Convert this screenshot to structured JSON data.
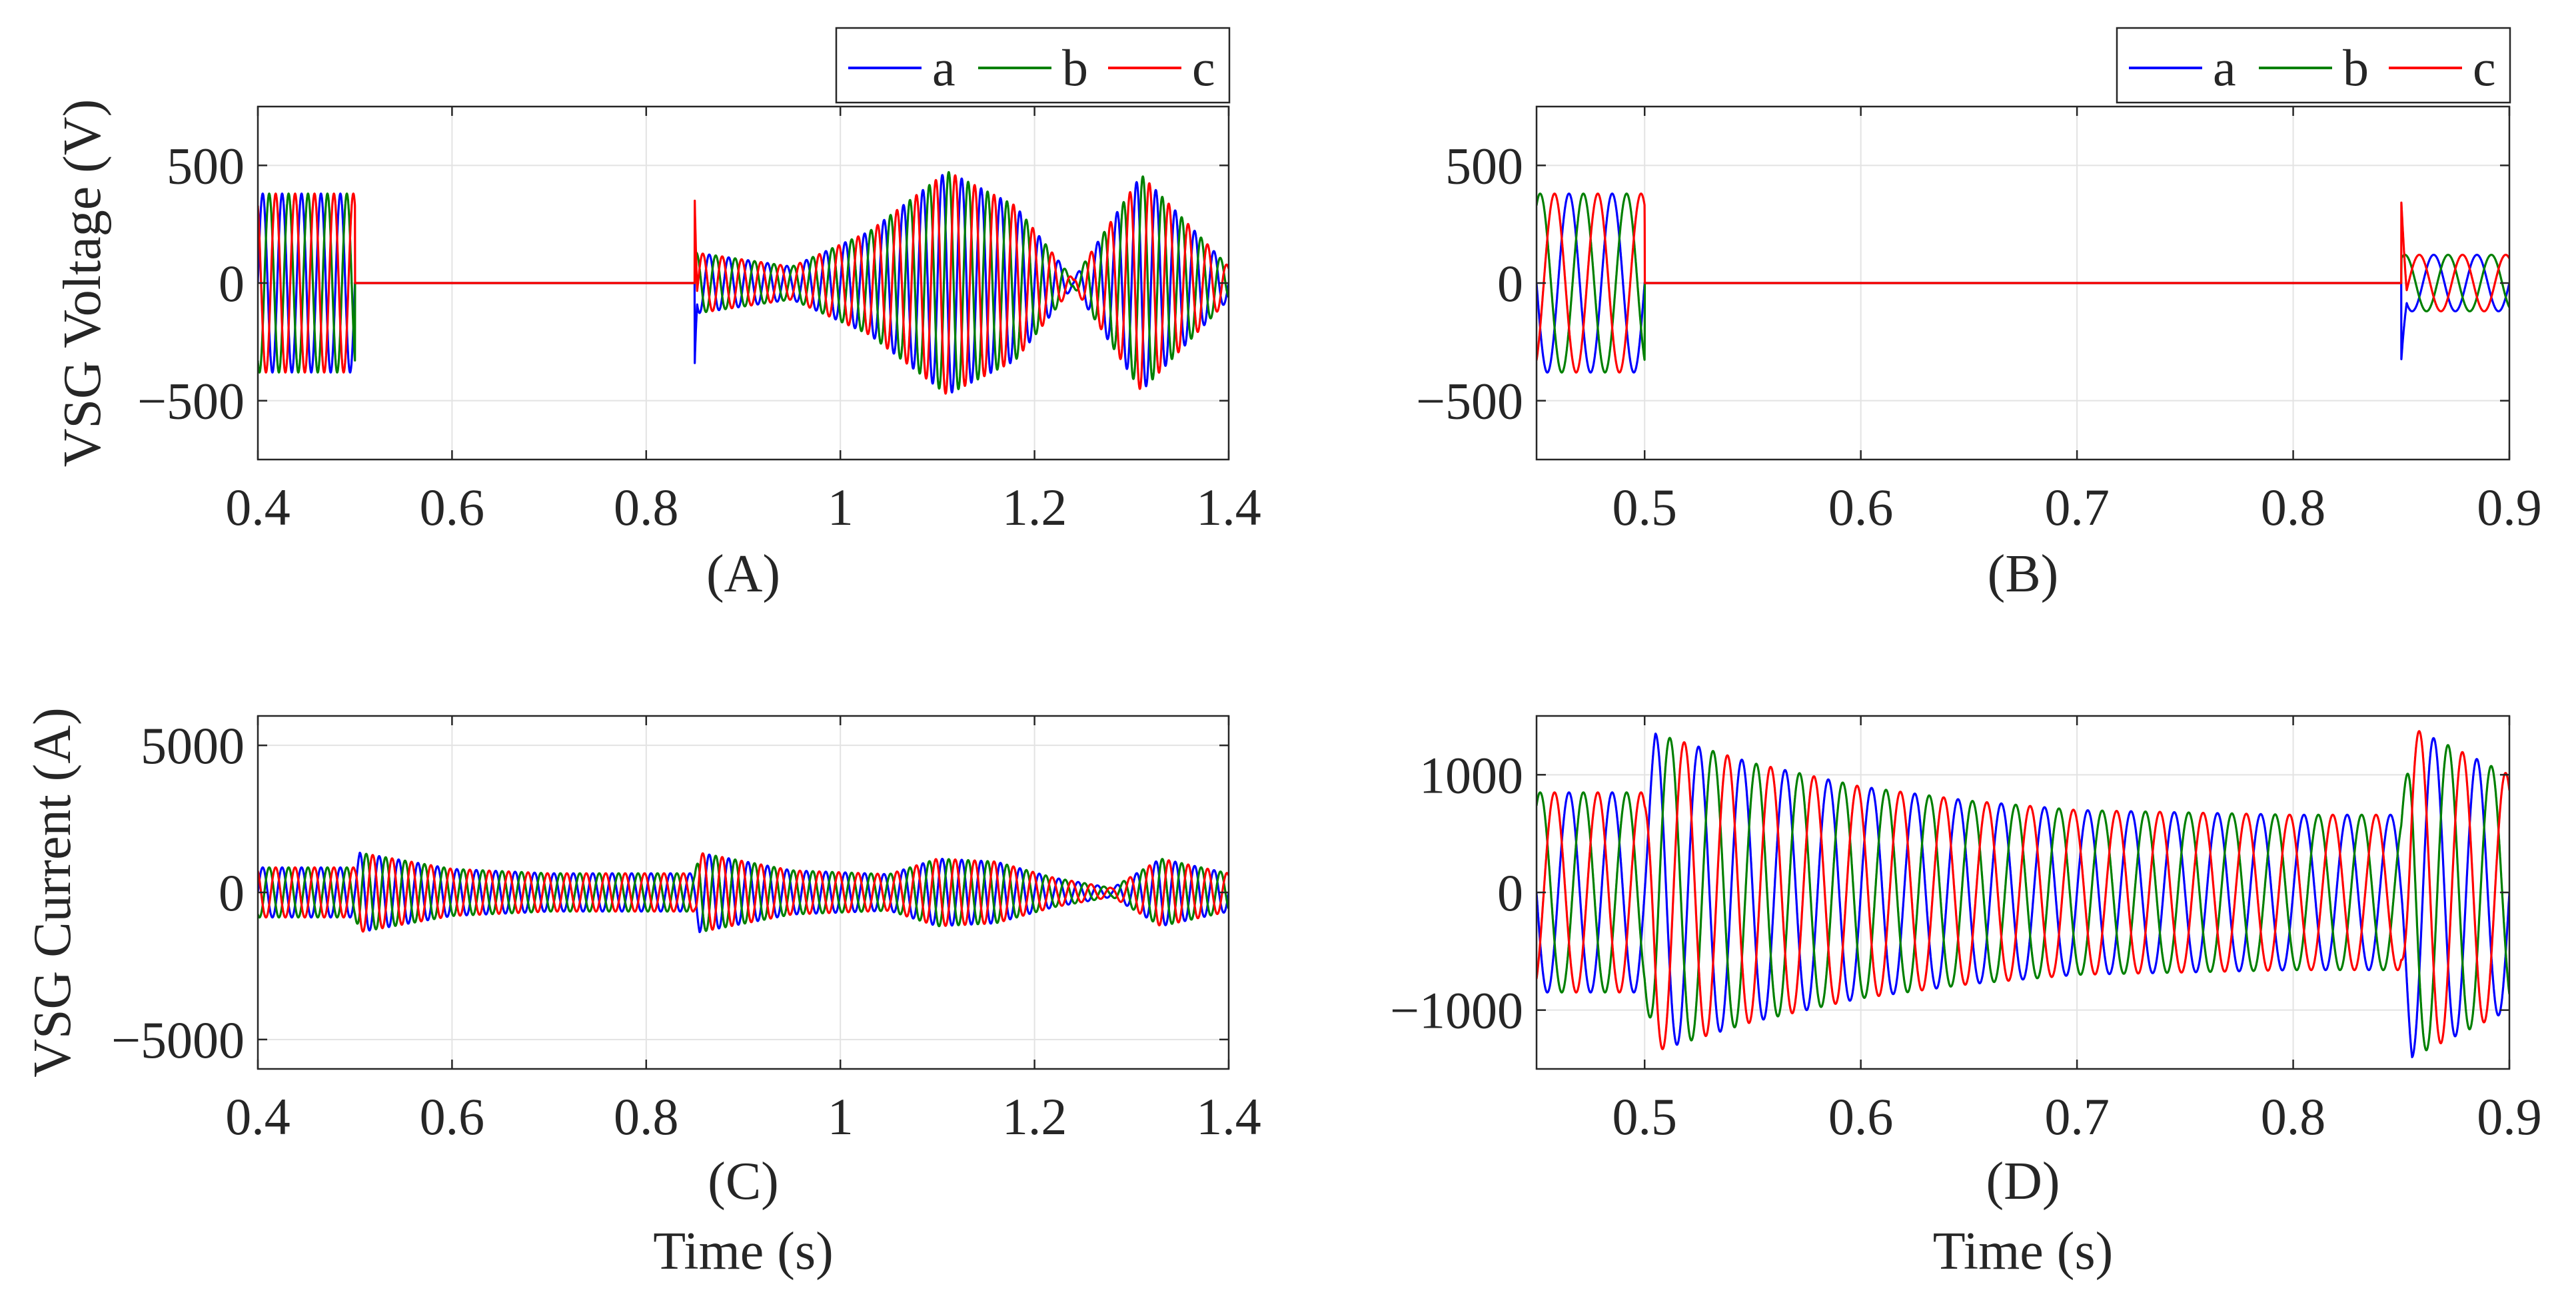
{
  "figure": {
    "x_axis_label": "Time (s)",
    "y_axis_labels": {
      "voltage": "VSG Voltage (V)",
      "current": "VSG Current (A)"
    }
  },
  "legend_labels": [
    "a",
    "b",
    "c"
  ],
  "colors": {
    "a": "#0000ff",
    "b": "#008000",
    "c": "#ff0000",
    "grid": "#e3e3e3",
    "axis": "#262626"
  },
  "chart_data": [
    {
      "id": "A",
      "caption": "(A)",
      "type": "line",
      "ylabel": "VSG Voltage (V)",
      "xlabel": "",
      "xlim": [
        0.4,
        1.4
      ],
      "ylim": [
        -750,
        750
      ],
      "xticks": [
        0.4,
        0.6,
        0.8,
        1,
        1.2,
        1.4
      ],
      "xtick_labels": [
        "0.4",
        "0.6",
        "0.8",
        "1",
        "1.2",
        "1.4"
      ],
      "yticks": [
        -500,
        0,
        500
      ],
      "ytick_labels": [
        "−500",
        "0",
        "500"
      ],
      "grid": true,
      "legend": "top-right, outside",
      "series": [
        {
          "name": "a",
          "phase_deg": 0,
          "frequency_hz": 50
        },
        {
          "name": "b",
          "phase_deg": -120,
          "frequency_hz": 50
        },
        {
          "name": "c",
          "phase_deg": 120,
          "frequency_hz": 50
        }
      ],
      "amplitude_envelope": [
        [
          0.4,
          380
        ],
        [
          0.5,
          380
        ],
        [
          0.5001,
          0
        ],
        [
          0.85,
          0
        ],
        [
          0.8501,
          130
        ],
        [
          0.95,
          70
        ],
        [
          1.03,
          220
        ],
        [
          1.11,
          475
        ],
        [
          1.18,
          330
        ],
        [
          1.24,
          15
        ],
        [
          1.31,
          460
        ],
        [
          1.4,
          70
        ]
      ],
      "transients": [
        {
          "t": 0.85,
          "max": 350,
          "min": -340
        }
      ]
    },
    {
      "id": "B",
      "caption": "(B)",
      "type": "line",
      "ylabel": "",
      "xlabel": "",
      "xlim": [
        0.45,
        0.9
      ],
      "ylim": [
        -750,
        750
      ],
      "xticks": [
        0.5,
        0.6,
        0.7,
        0.8,
        0.9
      ],
      "xtick_labels": [
        "0.5",
        "0.6",
        "0.7",
        "0.8",
        "0.9"
      ],
      "yticks": [
        -500,
        0,
        500
      ],
      "ytick_labels": [
        "−500",
        "0",
        "500"
      ],
      "grid": true,
      "legend": "top-right, outside",
      "series": [
        {
          "name": "a",
          "phase_deg": 0,
          "frequency_hz": 50
        },
        {
          "name": "b",
          "phase_deg": -120,
          "frequency_hz": 50
        },
        {
          "name": "c",
          "phase_deg": 120,
          "frequency_hz": 50
        }
      ],
      "amplitude_envelope": [
        [
          0.45,
          380
        ],
        [
          0.5,
          380
        ],
        [
          0.5001,
          0
        ],
        [
          0.85,
          0
        ],
        [
          0.8501,
          120
        ],
        [
          0.9,
          120
        ]
      ],
      "transients": [
        {
          "t": 0.85,
          "max": 350,
          "min": -330
        }
      ]
    },
    {
      "id": "C",
      "caption": "(C)",
      "type": "line",
      "ylabel": "VSG Current (A)",
      "xlabel": "Time (s)",
      "xlim": [
        0.4,
        1.4
      ],
      "ylim": [
        -6000,
        6000
      ],
      "xticks": [
        0.4,
        0.6,
        0.8,
        1,
        1.2,
        1.4
      ],
      "xtick_labels": [
        "0.4",
        "0.6",
        "0.8",
        "1",
        "1.2",
        "1.4"
      ],
      "yticks": [
        -5000,
        0,
        5000
      ],
      "ytick_labels": [
        "−5000",
        "0",
        "5000"
      ],
      "grid": true,
      "legend": "none",
      "series": [
        {
          "name": "a",
          "phase_deg": 0,
          "frequency_hz": 50
        },
        {
          "name": "b",
          "phase_deg": -120,
          "frequency_hz": 50
        },
        {
          "name": "c",
          "phase_deg": 120,
          "frequency_hz": 50
        }
      ],
      "amplitude_envelope": [
        [
          0.4,
          850
        ],
        [
          0.5,
          850
        ],
        [
          0.505,
          1350
        ],
        [
          0.6,
          800
        ],
        [
          0.7,
          650
        ],
        [
          0.85,
          650
        ],
        [
          0.855,
          1350
        ],
        [
          0.95,
          750
        ],
        [
          1.05,
          620
        ],
        [
          1.1,
          1150
        ],
        [
          1.16,
          1050
        ],
        [
          1.22,
          500
        ],
        [
          1.28,
          150
        ],
        [
          1.33,
          1150
        ],
        [
          1.4,
          650
        ]
      ],
      "transients": []
    },
    {
      "id": "D",
      "caption": "(D)",
      "type": "line",
      "ylabel": "",
      "xlabel": "Time (s)",
      "xlim": [
        0.45,
        0.9
      ],
      "ylim": [
        -1500,
        1500
      ],
      "xticks": [
        0.5,
        0.6,
        0.7,
        0.8,
        0.9
      ],
      "xtick_labels": [
        "0.5",
        "0.6",
        "0.7",
        "0.8",
        "0.9"
      ],
      "yticks": [
        -1000,
        0,
        1000
      ],
      "ytick_labels": [
        "−1000",
        "0",
        "1000"
      ],
      "grid": true,
      "legend": "none",
      "series": [
        {
          "name": "a",
          "phase_deg": 0,
          "frequency_hz": 50
        },
        {
          "name": "b",
          "phase_deg": -120,
          "frequency_hz": 50
        },
        {
          "name": "c",
          "phase_deg": 120,
          "frequency_hz": 50
        }
      ],
      "amplitude_envelope": [
        [
          0.45,
          850
        ],
        [
          0.5,
          850
        ],
        [
          0.505,
          1350
        ],
        [
          0.55,
          1100
        ],
        [
          0.6,
          900
        ],
        [
          0.65,
          780
        ],
        [
          0.7,
          700
        ],
        [
          0.8,
          660
        ],
        [
          0.85,
          660
        ],
        [
          0.855,
          1400
        ],
        [
          0.9,
          1000
        ]
      ],
      "transients": []
    }
  ]
}
